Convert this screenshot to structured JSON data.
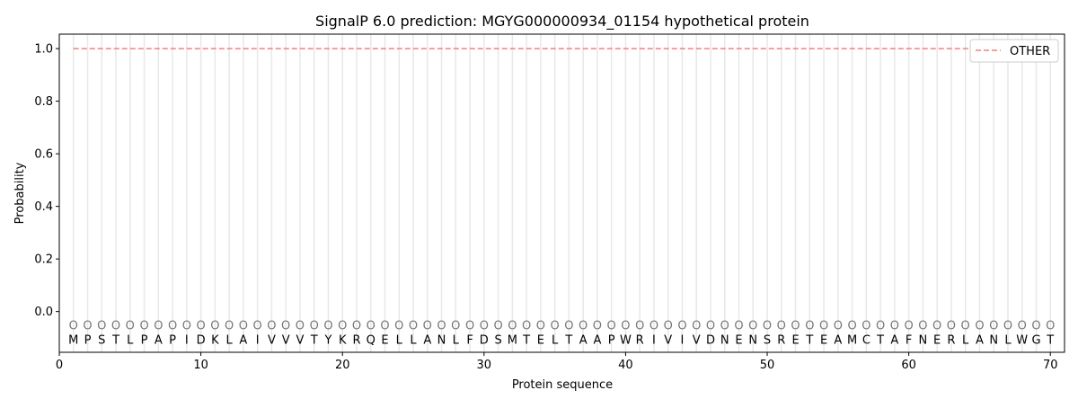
{
  "chart_data": {
    "type": "line",
    "title": "SignalP 6.0 prediction: MGYG000000934_01154 hypothetical protein",
    "xlabel": "Protein sequence",
    "ylabel": "Probability",
    "xlim": [
      0,
      71
    ],
    "ylim": [
      -0.155,
      1.055
    ],
    "xticks": [
      0,
      10,
      20,
      30,
      40,
      50,
      60,
      70
    ],
    "yticks": [
      0.0,
      0.2,
      0.4,
      0.6,
      0.8,
      1.0
    ],
    "ytick_labels": [
      "0.0",
      "0.2",
      "0.4",
      "0.6",
      "0.8",
      "1.0"
    ],
    "grid": "vertical lines at each residue",
    "legend_position": "top-right",
    "sequence": [
      "M",
      "P",
      "S",
      "T",
      "L",
      "P",
      "A",
      "P",
      "I",
      "D",
      "K",
      "L",
      "A",
      "I",
      "V",
      "V",
      "V",
      "T",
      "Y",
      "K",
      "R",
      "Q",
      "E",
      "L",
      "L",
      "A",
      "N",
      "L",
      "F",
      "D",
      "S",
      "M",
      "T",
      "E",
      "L",
      "T",
      "A",
      "A",
      "P",
      "W",
      "R",
      "I",
      "V",
      "I",
      "V",
      "D",
      "N",
      "E",
      "N",
      "S",
      "R",
      "E",
      "T",
      "E",
      "A",
      "M",
      "C",
      "T",
      "A",
      "F",
      "N",
      "E",
      "R",
      "L",
      "A",
      "N",
      "L",
      "W",
      "G",
      "T"
    ],
    "prediction_marker": "O",
    "prediction_marker_y": -0.05,
    "series": [
      {
        "name": "OTHER",
        "color": "#f08080",
        "style": "dashed",
        "x_range": [
          1,
          70
        ],
        "value": 1.0
      }
    ]
  }
}
